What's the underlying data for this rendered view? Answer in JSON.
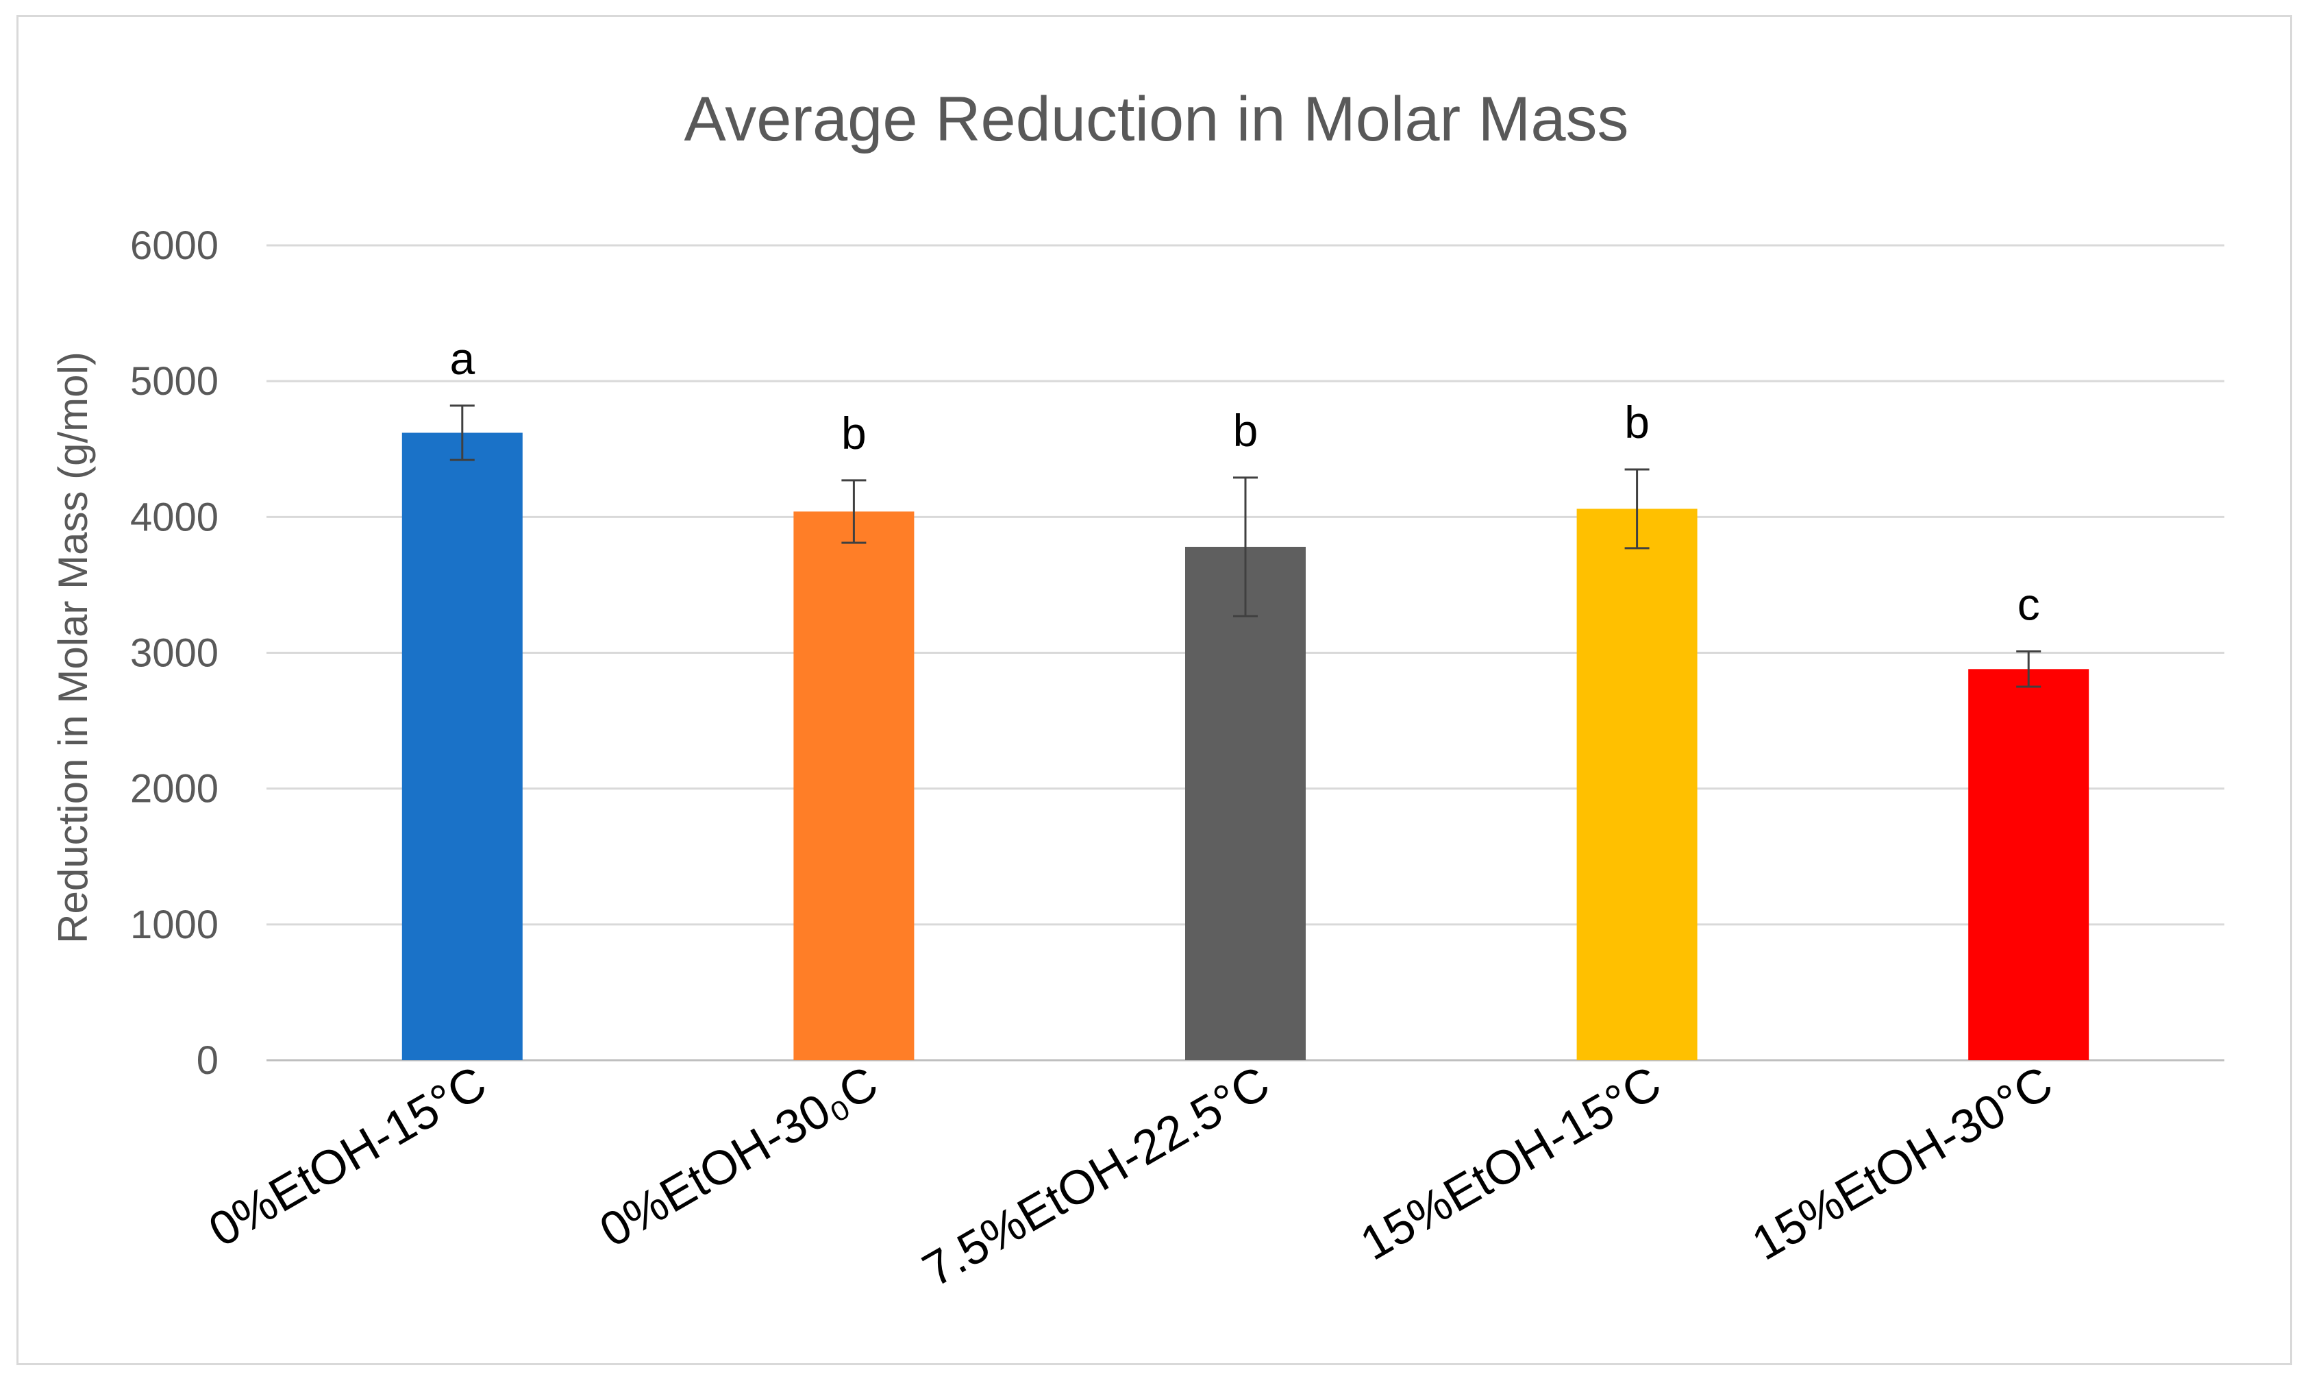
{
  "chart_data": {
    "type": "bar",
    "title": "Average Reduction in Molar Mass",
    "xlabel": "",
    "ylabel": "Reduction in Molar Mass (g/mol)",
    "ylim": [
      0,
      6000
    ],
    "yticks": [
      0,
      1000,
      2000,
      3000,
      4000,
      5000,
      6000
    ],
    "ytick_labels": [
      "0",
      "1000",
      "2000",
      "3000",
      "4000",
      "5000",
      "6000"
    ],
    "grid": true,
    "legend": "none",
    "categories": [
      "0%EtOH-15°C",
      "0%EtOH-30₀C",
      "7.5%EtOH-22.5°C",
      "15%EtOH-15°C",
      "15%EtOH-30°C"
    ],
    "values": [
      4620,
      4040,
      3780,
      4060,
      2880
    ],
    "errors": [
      200,
      230,
      510,
      290,
      130
    ],
    "colors": [
      "#1a72c8",
      "#ff7e27",
      "#5f5f5f",
      "#ffc000",
      "#ff0000"
    ],
    "significance_labels": [
      "a",
      "b",
      "b",
      "b",
      "c"
    ]
  }
}
